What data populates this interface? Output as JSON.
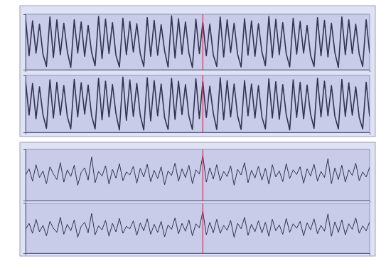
{
  "chart_data": [
    {
      "type": "line",
      "xlim": [
        0,
        99
      ],
      "ylim": [
        0,
        1
      ],
      "tick_labels": false,
      "event_x": 51,
      "x": [
        0,
        1,
        2,
        3,
        4,
        5,
        6,
        7,
        8,
        9,
        10,
        11,
        12,
        13,
        14,
        15,
        16,
        17,
        18,
        19,
        20,
        21,
        22,
        23,
        24,
        25,
        26,
        27,
        28,
        29,
        30,
        31,
        32,
        33,
        34,
        35,
        36,
        37,
        38,
        39,
        40,
        41,
        42,
        43,
        44,
        45,
        46,
        47,
        48,
        49,
        50,
        51,
        52,
        53,
        54,
        55,
        56,
        57,
        58,
        59,
        60,
        61,
        62,
        63,
        64,
        65,
        66,
        67,
        68,
        69,
        70,
        71,
        72,
        73,
        74,
        75,
        76,
        77,
        78,
        79,
        80,
        81,
        82,
        83,
        84,
        85,
        86,
        87,
        88,
        89,
        90,
        91,
        92,
        93,
        94,
        95,
        96,
        97,
        98,
        99
      ],
      "series": [
        {
          "color": "#2f3452",
          "values": [
            0.92,
            0.25,
            0.88,
            0.3,
            0.82,
            0.28,
            0.06,
            0.95,
            0.22,
            0.9,
            0.27,
            0.84,
            0.33,
            0.04,
            0.9,
            0.3,
            0.86,
            0.24,
            0.8,
            0.31,
            0.07,
            0.96,
            0.2,
            0.91,
            0.29,
            0.85,
            0.26,
            0.05,
            0.93,
            0.27,
            0.87,
            0.32,
            0.83,
            0.29,
            0.06,
            0.94,
            0.24,
            0.89,
            0.26,
            0.81,
            0.34,
            0.05,
            0.97,
            0.21,
            0.92,
            0.28,
            0.86,
            0.3,
            0.04,
            0.91,
            0.29,
            0.85,
            0.25,
            0.82,
            0.27,
            0.06,
            0.95,
            0.23,
            0.9,
            0.31,
            0.84,
            0.28,
            0.05,
            0.92,
            0.26,
            0.88,
            0.24,
            0.83,
            0.32,
            0.07,
            0.96,
            0.22,
            0.91,
            0.27,
            0.85,
            0.29,
            0.05,
            0.93,
            0.28,
            0.87,
            0.3,
            0.8,
            0.26,
            0.06,
            0.94,
            0.25,
            0.89,
            0.23,
            0.84,
            0.31,
            0.04,
            0.95,
            0.27,
            0.9,
            0.29,
            0.82,
            0.28,
            0.06,
            0.9,
            0.3
          ]
        }
      ]
    },
    {
      "type": "line",
      "xlim": [
        0,
        99
      ],
      "ylim": [
        0,
        1
      ],
      "tick_labels": false,
      "event_x": 51,
      "x": [
        0,
        1,
        2,
        3,
        4,
        5,
        6,
        7,
        8,
        9,
        10,
        11,
        12,
        13,
        14,
        15,
        16,
        17,
        18,
        19,
        20,
        21,
        22,
        23,
        24,
        25,
        26,
        27,
        28,
        29,
        30,
        31,
        32,
        33,
        34,
        35,
        36,
        37,
        38,
        39,
        40,
        41,
        42,
        43,
        44,
        45,
        46,
        47,
        48,
        49,
        50,
        51,
        52,
        53,
        54,
        55,
        56,
        57,
        58,
        59,
        60,
        61,
        62,
        63,
        64,
        65,
        66,
        67,
        68,
        69,
        70,
        71,
        72,
        73,
        74,
        75,
        76,
        77,
        78,
        79,
        80,
        81,
        82,
        83,
        84,
        85,
        86,
        87,
        88,
        89,
        90,
        91,
        92,
        93,
        94,
        95,
        96,
        97,
        98,
        99
      ],
      "series": [
        {
          "color": "#2f3452",
          "values": [
            0.9,
            0.3,
            0.86,
            0.24,
            0.8,
            0.31,
            0.07,
            0.92,
            0.25,
            0.88,
            0.3,
            0.82,
            0.28,
            0.06,
            0.93,
            0.27,
            0.87,
            0.32,
            0.83,
            0.29,
            0.06,
            0.95,
            0.22,
            0.9,
            0.27,
            0.84,
            0.33,
            0.04,
            0.97,
            0.21,
            0.92,
            0.28,
            0.86,
            0.3,
            0.04,
            0.96,
            0.2,
            0.91,
            0.29,
            0.85,
            0.26,
            0.05,
            0.95,
            0.23,
            0.9,
            0.31,
            0.84,
            0.28,
            0.05,
            0.94,
            0.24,
            0.89,
            0.26,
            0.81,
            0.34,
            0.05,
            0.96,
            0.22,
            0.91,
            0.27,
            0.85,
            0.29,
            0.05,
            0.91,
            0.29,
            0.85,
            0.25,
            0.82,
            0.27,
            0.06,
            0.94,
            0.25,
            0.89,
            0.23,
            0.84,
            0.31,
            0.04,
            0.92,
            0.26,
            0.88,
            0.24,
            0.83,
            0.32,
            0.07,
            0.95,
            0.27,
            0.9,
            0.29,
            0.82,
            0.28,
            0.06,
            0.93,
            0.28,
            0.87,
            0.3,
            0.8,
            0.26,
            0.06,
            0.88,
            0.28
          ]
        }
      ]
    },
    {
      "type": "line",
      "xlim": [
        0,
        99
      ],
      "ylim": [
        0,
        1
      ],
      "tick_labels": false,
      "event_x": 51,
      "x": [
        0,
        1,
        2,
        3,
        4,
        5,
        6,
        7,
        8,
        9,
        10,
        11,
        12,
        13,
        14,
        15,
        16,
        17,
        18,
        19,
        20,
        21,
        22,
        23,
        24,
        25,
        26,
        27,
        28,
        29,
        30,
        31,
        32,
        33,
        34,
        35,
        36,
        37,
        38,
        39,
        40,
        41,
        42,
        43,
        44,
        45,
        46,
        47,
        48,
        49,
        50,
        51,
        52,
        53,
        54,
        55,
        56,
        57,
        58,
        59,
        60,
        61,
        62,
        63,
        64,
        65,
        66,
        67,
        68,
        69,
        70,
        71,
        72,
        73,
        74,
        75,
        76,
        77,
        78,
        79,
        80,
        81,
        82,
        83,
        84,
        85,
        86,
        87,
        88,
        89,
        90,
        91,
        92,
        93,
        94,
        95,
        96,
        97,
        98,
        99
      ],
      "series": [
        {
          "color": "#2f3452",
          "values": [
            0.5,
            0.62,
            0.38,
            0.7,
            0.45,
            0.58,
            0.33,
            0.66,
            0.52,
            0.41,
            0.74,
            0.36,
            0.6,
            0.47,
            0.69,
            0.3,
            0.55,
            0.64,
            0.4,
            0.85,
            0.35,
            0.57,
            0.48,
            0.68,
            0.32,
            0.61,
            0.44,
            0.72,
            0.39,
            0.56,
            0.5,
            0.67,
            0.34,
            0.63,
            0.46,
            0.71,
            0.37,
            0.59,
            0.43,
            0.66,
            0.31,
            0.58,
            0.49,
            0.73,
            0.38,
            0.62,
            0.45,
            0.69,
            0.33,
            0.6,
            0.52,
            0.88,
            0.36,
            0.64,
            0.42,
            0.7,
            0.39,
            0.57,
            0.47,
            0.68,
            0.3,
            0.61,
            0.5,
            0.74,
            0.35,
            0.59,
            0.44,
            0.67,
            0.4,
            0.63,
            0.32,
            0.7,
            0.46,
            0.58,
            0.37,
            0.72,
            0.43,
            0.6,
            0.51,
            0.66,
            0.34,
            0.62,
            0.48,
            0.71,
            0.38,
            0.57,
            0.45,
            0.82,
            0.33,
            0.64,
            0.41,
            0.69,
            0.36,
            0.6,
            0.49,
            0.73,
            0.39,
            0.56,
            0.46,
            0.65
          ]
        }
      ]
    },
    {
      "type": "line",
      "xlim": [
        0,
        99
      ],
      "ylim": [
        0,
        1
      ],
      "tick_labels": false,
      "event_x": 51,
      "x": [
        0,
        1,
        2,
        3,
        4,
        5,
        6,
        7,
        8,
        9,
        10,
        11,
        12,
        13,
        14,
        15,
        16,
        17,
        18,
        19,
        20,
        21,
        22,
        23,
        24,
        25,
        26,
        27,
        28,
        29,
        30,
        31,
        32,
        33,
        34,
        35,
        36,
        37,
        38,
        39,
        40,
        41,
        42,
        43,
        44,
        45,
        46,
        47,
        48,
        49,
        50,
        51,
        52,
        53,
        54,
        55,
        56,
        57,
        58,
        59,
        60,
        61,
        62,
        63,
        64,
        65,
        66,
        67,
        68,
        69,
        70,
        71,
        72,
        73,
        74,
        75,
        76,
        77,
        78,
        79,
        80,
        81,
        82,
        83,
        84,
        85,
        86,
        87,
        88,
        89,
        90,
        91,
        92,
        93,
        94,
        95,
        96,
        97,
        98,
        99
      ],
      "series": [
        {
          "color": "#2f3452",
          "values": [
            0.48,
            0.6,
            0.4,
            0.68,
            0.43,
            0.56,
            0.35,
            0.64,
            0.5,
            0.42,
            0.72,
            0.38,
            0.58,
            0.45,
            0.67,
            0.32,
            0.54,
            0.62,
            0.41,
            0.8,
            0.37,
            0.55,
            0.47,
            0.66,
            0.34,
            0.6,
            0.43,
            0.7,
            0.4,
            0.54,
            0.49,
            0.65,
            0.36,
            0.61,
            0.45,
            0.69,
            0.38,
            0.58,
            0.42,
            0.64,
            0.33,
            0.57,
            0.48,
            0.71,
            0.39,
            0.6,
            0.44,
            0.67,
            0.35,
            0.59,
            0.51,
            0.84,
            0.37,
            0.62,
            0.41,
            0.68,
            0.4,
            0.56,
            0.46,
            0.66,
            0.32,
            0.6,
            0.49,
            0.72,
            0.36,
            0.58,
            0.43,
            0.65,
            0.41,
            0.62,
            0.34,
            0.68,
            0.45,
            0.57,
            0.38,
            0.7,
            0.42,
            0.59,
            0.5,
            0.64,
            0.35,
            0.61,
            0.47,
            0.69,
            0.39,
            0.56,
            0.44,
            0.79,
            0.34,
            0.63,
            0.42,
            0.67,
            0.37,
            0.59,
            0.48,
            0.71,
            0.4,
            0.55,
            0.45,
            0.63
          ]
        }
      ]
    }
  ]
}
